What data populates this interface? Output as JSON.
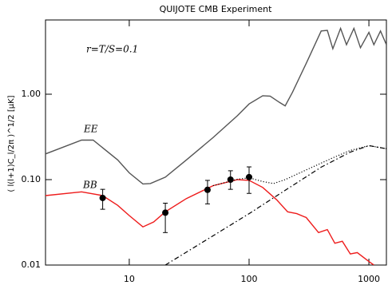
{
  "chart_data": {
    "type": "line",
    "title": "QUIJOTE CMB Experiment",
    "y_label": "( l(l+1)C_l/2π )^1/2 [μK]",
    "annotation": "r=T/S=0.1",
    "xlog": true,
    "ylog": true,
    "xlim": [
      2,
      1400
    ],
    "ylim": [
      0.01,
      7.4
    ],
    "xticks": [
      10,
      100,
      1000
    ],
    "yticks": [
      {
        "value": 0.01,
        "label": "0.01"
      },
      {
        "value": 0.1,
        "label": "0.10"
      },
      {
        "value": 1,
        "label": "1.00"
      }
    ],
    "series": [
      {
        "name": "EE",
        "color": "#555555",
        "style": "solid",
        "x": [
          2,
          4,
          5,
          8,
          10,
          13,
          15,
          20,
          30,
          50,
          80,
          100,
          130,
          150,
          180,
          200,
          230,
          300,
          400,
          450,
          500,
          580,
          650,
          750,
          850,
          1000,
          1100,
          1250,
          1400
        ],
        "values": [
          0.2,
          0.29,
          0.29,
          0.17,
          0.12,
          0.089,
          0.09,
          0.107,
          0.17,
          0.31,
          0.56,
          0.77,
          0.96,
          0.95,
          0.8,
          0.73,
          1.05,
          2.3,
          5.5,
          5.6,
          3.4,
          5.9,
          3.8,
          5.9,
          3.5,
          5.3,
          3.8,
          5.5,
          3.8
        ]
      },
      {
        "name": "BB",
        "color": "#ee1c1c",
        "style": "solid",
        "x": [
          2,
          4,
          6,
          8,
          10,
          13,
          16,
          20,
          30,
          50,
          80,
          100,
          130,
          170,
          210,
          250,
          300,
          380,
          450,
          520,
          600,
          700,
          800,
          1000,
          1100
        ],
        "values": [
          0.065,
          0.072,
          0.065,
          0.05,
          0.038,
          0.028,
          0.032,
          0.042,
          0.06,
          0.085,
          0.1,
          0.098,
          0.081,
          0.058,
          0.042,
          0.04,
          0.036,
          0.024,
          0.026,
          0.018,
          0.019,
          0.0135,
          0.014,
          0.011,
          0.01
        ]
      },
      {
        "color": "#000000",
        "style": "dotted",
        "x": [
          50,
          80,
          100,
          130,
          160,
          200,
          300,
          500,
          700,
          1000,
          1400
        ],
        "values": [
          0.085,
          0.101,
          0.105,
          0.095,
          0.09,
          0.1,
          0.13,
          0.18,
          0.22,
          0.25,
          0.23
        ]
      },
      {
        "color": "#000000",
        "style": "dashdot",
        "x": [
          20,
          50,
          100,
          200,
          400,
          700,
          1000,
          1400
        ],
        "values": [
          0.01,
          0.022,
          0.04,
          0.075,
          0.14,
          0.21,
          0.25,
          0.23
        ]
      }
    ],
    "points": {
      "color": "#000000",
      "x": [
        6,
        20,
        45,
        70,
        100
      ],
      "values": [
        0.061,
        0.041,
        0.076,
        0.1,
        0.107
      ],
      "lower": [
        0.045,
        0.024,
        0.052,
        0.077,
        0.069
      ],
      "upper": [
        0.077,
        0.053,
        0.098,
        0.127,
        0.141
      ]
    }
  }
}
